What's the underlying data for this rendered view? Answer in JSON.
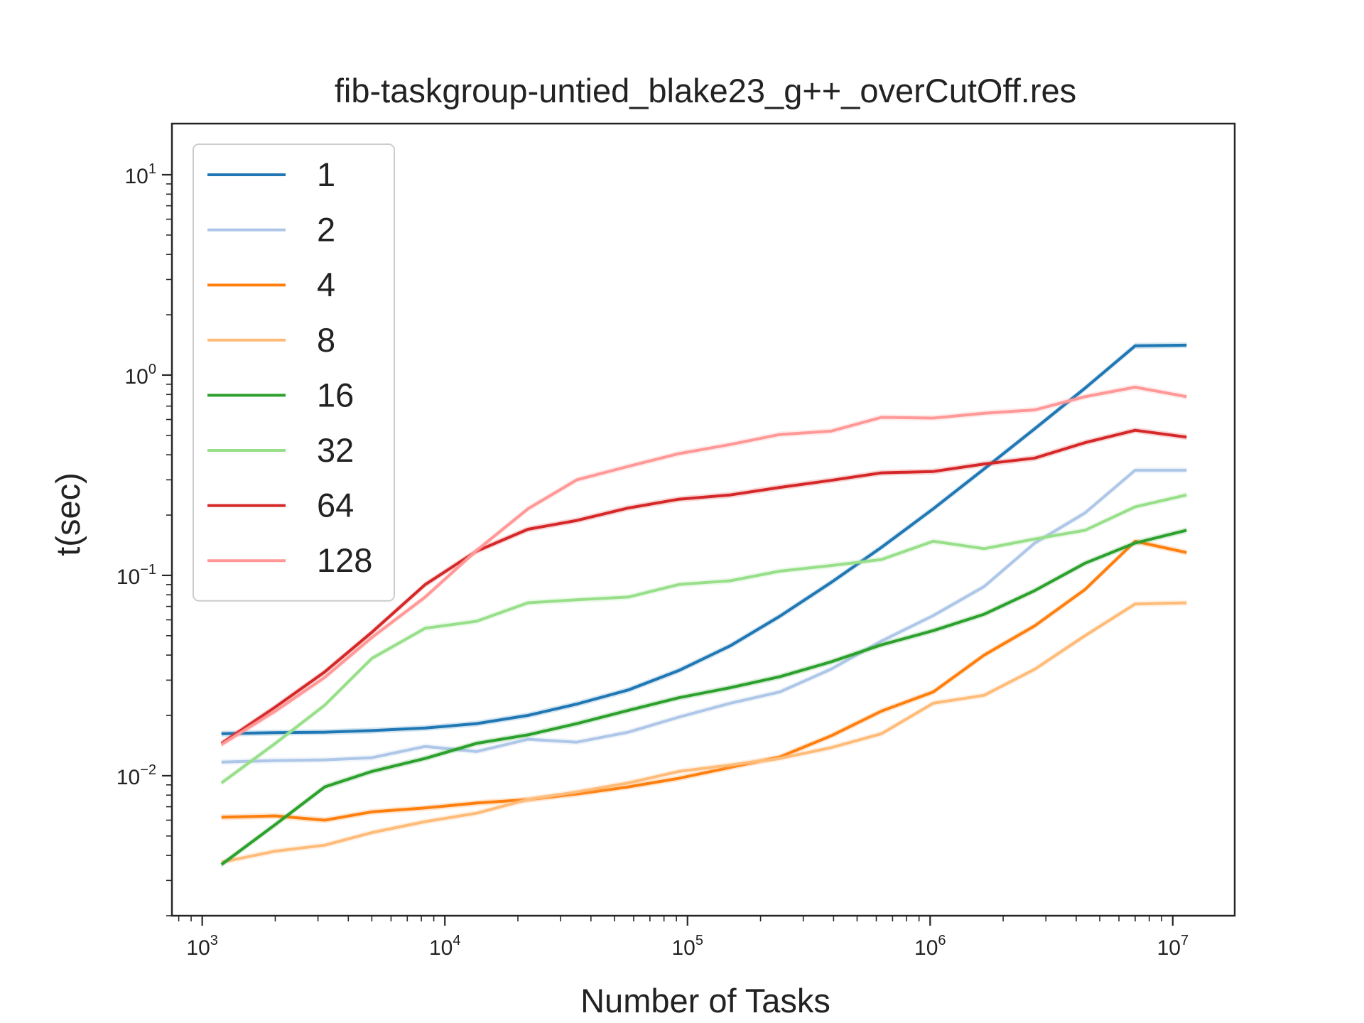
{
  "chart_data": {
    "type": "line",
    "title": "fib-taskgroup-untied_blake23_g++_overCutOff.res",
    "xlabel": "Number of Tasks",
    "ylabel": "t(sec)",
    "x_scale": "log",
    "y_scale": "log",
    "xlim": [
      750,
      18000000
    ],
    "ylim": [
      0.002,
      18
    ],
    "x_major_ticks": [
      {
        "value": 1000,
        "base": "10",
        "exp": "3"
      },
      {
        "value": 10000,
        "base": "10",
        "exp": "4"
      },
      {
        "value": 100000,
        "base": "10",
        "exp": "5"
      },
      {
        "value": 1000000,
        "base": "10",
        "exp": "6"
      },
      {
        "value": 10000000,
        "base": "10",
        "exp": "7"
      }
    ],
    "y_major_ticks": [
      {
        "value": 0.01,
        "base": "10",
        "exp": "−2"
      },
      {
        "value": 0.1,
        "base": "10",
        "exp": "−1"
      },
      {
        "value": 1,
        "base": "10",
        "exp": "0"
      },
      {
        "value": 10,
        "base": "10",
        "exp": "1"
      }
    ],
    "grid": false,
    "legend_position": "top-left",
    "x": [
      1200,
      2000,
      3200,
      5000,
      8300,
      13500,
      22000,
      35000,
      57000,
      92000,
      150000,
      240000,
      390000,
      630000,
      1030000,
      1670000,
      2700000,
      4350000,
      7000000,
      11400000
    ],
    "series": [
      {
        "name": "1",
        "color": "#1f77b4",
        "values": [
          0.0162,
          0.0164,
          0.0165,
          0.0168,
          0.0173,
          0.0182,
          0.02,
          0.0228,
          0.0268,
          0.0335,
          0.0445,
          0.0625,
          0.092,
          0.138,
          0.215,
          0.34,
          0.54,
          0.86,
          1.4,
          1.41
        ]
      },
      {
        "name": "2",
        "color": "#aec7e8",
        "values": [
          0.0117,
          0.0119,
          0.012,
          0.0123,
          0.014,
          0.0132,
          0.0152,
          0.0147,
          0.0165,
          0.0196,
          0.023,
          0.0262,
          0.034,
          0.047,
          0.063,
          0.088,
          0.145,
          0.205,
          0.335,
          0.335
        ]
      },
      {
        "name": "4",
        "color": "#ff7f0e",
        "values": [
          0.0062,
          0.0063,
          0.006,
          0.0066,
          0.0069,
          0.0073,
          0.0076,
          0.0081,
          0.0088,
          0.0097,
          0.011,
          0.0124,
          0.0158,
          0.021,
          0.0262,
          0.04,
          0.056,
          0.085,
          0.148,
          0.13
        ]
      },
      {
        "name": "8",
        "color": "#ffbb78",
        "values": [
          0.0037,
          0.0042,
          0.0045,
          0.0052,
          0.0059,
          0.0065,
          0.0076,
          0.0083,
          0.0092,
          0.0105,
          0.0113,
          0.0122,
          0.0138,
          0.0162,
          0.023,
          0.0252,
          0.034,
          0.05,
          0.072,
          0.073
        ]
      },
      {
        "name": "16",
        "color": "#2ca02c",
        "values": [
          0.0036,
          0.0057,
          0.0088,
          0.0105,
          0.0122,
          0.0145,
          0.016,
          0.0182,
          0.0212,
          0.0245,
          0.0275,
          0.0312,
          0.037,
          0.045,
          0.053,
          0.064,
          0.084,
          0.115,
          0.145,
          0.168
        ]
      },
      {
        "name": "32",
        "color": "#98df8a",
        "values": [
          0.0092,
          0.0145,
          0.0225,
          0.0385,
          0.0545,
          0.059,
          0.073,
          0.0755,
          0.078,
          0.09,
          0.094,
          0.105,
          0.112,
          0.12,
          0.148,
          0.136,
          0.152,
          0.168,
          0.22,
          0.252
        ]
      },
      {
        "name": "64",
        "color": "#d62728",
        "values": [
          0.0145,
          0.022,
          0.033,
          0.052,
          0.09,
          0.132,
          0.17,
          0.188,
          0.217,
          0.24,
          0.252,
          0.275,
          0.298,
          0.325,
          0.33,
          0.36,
          0.385,
          0.46,
          0.53,
          0.49
        ]
      },
      {
        "name": "128",
        "color": "#ff9896",
        "values": [
          0.0143,
          0.021,
          0.031,
          0.049,
          0.078,
          0.133,
          0.215,
          0.3,
          0.35,
          0.405,
          0.45,
          0.505,
          0.525,
          0.615,
          0.61,
          0.645,
          0.67,
          0.78,
          0.87,
          0.78
        ]
      }
    ]
  }
}
